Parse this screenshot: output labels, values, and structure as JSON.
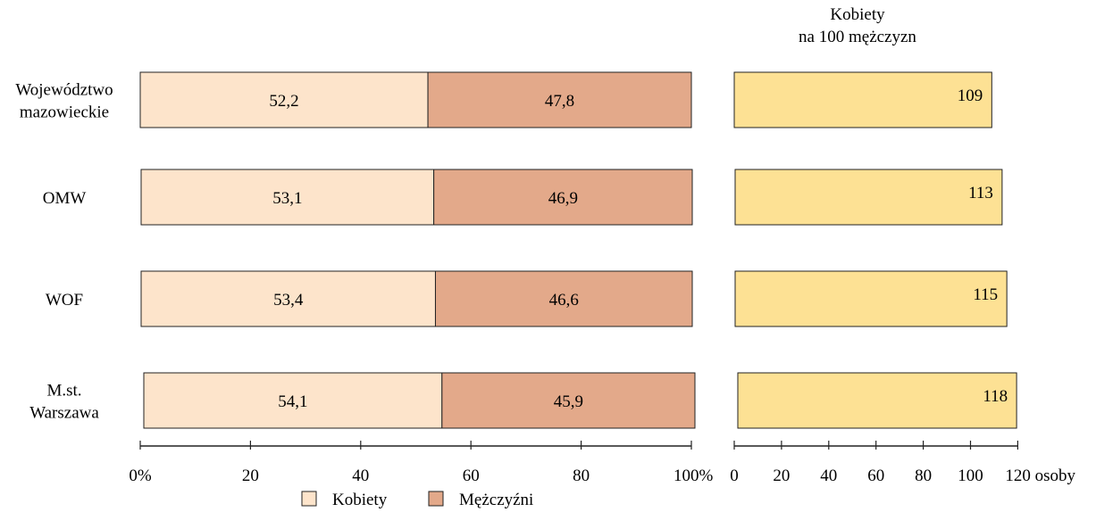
{
  "chart_data": [
    {
      "type": "bar",
      "stacked": true,
      "orientation": "horizontal",
      "categories": [
        [
          "Województwo",
          "mazowieckie"
        ],
        [
          "OMW"
        ],
        [
          "WOF"
        ],
        [
          "M.st.",
          "Warszawa"
        ]
      ],
      "series": [
        {
          "name": "Kobiety",
          "values": [
            52.2,
            53.1,
            53.4,
            54.1
          ],
          "labels": [
            "52,2",
            "53,1",
            "53,4",
            "54,1"
          ],
          "color": "#fde4cb"
        },
        {
          "name": "Mężczyźni",
          "values": [
            47.8,
            46.9,
            46.6,
            45.9
          ],
          "labels": [
            "47,8",
            "46,9",
            "46,6",
            "45,9"
          ],
          "color": "#e3a98a"
        }
      ],
      "xlim": [
        0,
        100
      ],
      "xticks": [
        "0%",
        "20",
        "40",
        "60",
        "80",
        "100%"
      ],
      "xtick_values": [
        0,
        20,
        40,
        60,
        80,
        100
      ],
      "legend": {
        "position": "bottom",
        "entries": [
          "Kobiety",
          "Mężczyźni"
        ]
      }
    },
    {
      "type": "bar",
      "orientation": "horizontal",
      "title": [
        "Kobiety",
        "na 100 mężczyzn"
      ],
      "categories": [
        "Województwo mazowieckie",
        "OMW",
        "WOF",
        "M.st. Warszawa"
      ],
      "values": [
        109,
        113,
        115,
        118
      ],
      "labels": [
        "109",
        "113",
        "115",
        "118"
      ],
      "color": "#fde194",
      "xlim": [
        0,
        120
      ],
      "xticks": [
        "0",
        "20",
        "40",
        "60",
        "80",
        "100",
        "120 osoby"
      ],
      "xtick_values": [
        0,
        20,
        40,
        60,
        80,
        100,
        120
      ]
    }
  ]
}
